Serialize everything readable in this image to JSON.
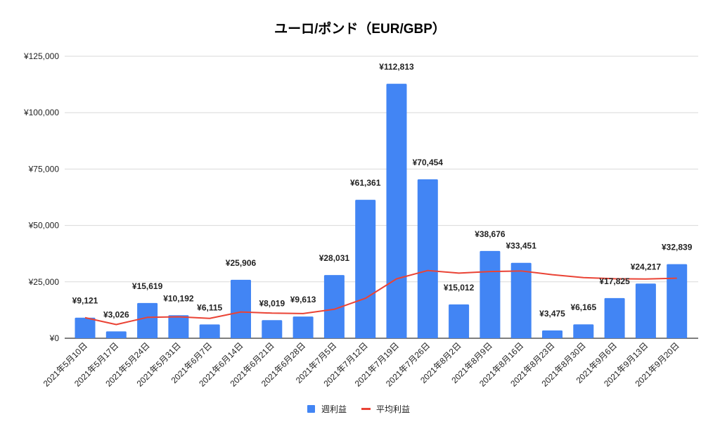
{
  "chart_data": {
    "type": "bar",
    "title": "ユーロ/ポンド（EUR/GBP）",
    "xlabel": "",
    "ylabel": "",
    "ylim": [
      0,
      125000
    ],
    "yticks": [
      0,
      25000,
      50000,
      75000,
      100000,
      125000
    ],
    "ytick_labels": [
      "¥0",
      "¥25,000",
      "¥50,000",
      "¥75,000",
      "¥100,000",
      "¥125,000"
    ],
    "grid": true,
    "legend_position": "bottom",
    "categories": [
      "2021年5月10日",
      "2021年5月17日",
      "2021年5月24日",
      "2021年5月31日",
      "2021年6月7日",
      "2021年6月14日",
      "2021年6月21日",
      "2021年6月28日",
      "2021年7月5日",
      "2021年7月12日",
      "2021年7月19日",
      "2021年7月26日",
      "2021年8月2日",
      "2021年8月9日",
      "2021年8月16日",
      "2021年8月23日",
      "2021年8月30日",
      "2021年9月6日",
      "2021年9月13日",
      "2021年9月20日"
    ],
    "series": [
      {
        "name": "週利益",
        "type": "bar",
        "color": "#4285f4",
        "values": [
          9121,
          3026,
          15619,
          10192,
          6115,
          25906,
          8019,
          9613,
          28031,
          61361,
          112813,
          70454,
          15012,
          38676,
          33451,
          3475,
          6165,
          17825,
          24217,
          32839
        ],
        "data_labels": [
          "¥9,121",
          "¥3,026",
          "¥15,619",
          "¥10,192",
          "¥6,115",
          "¥25,906",
          "¥8,019",
          "¥9,613",
          "¥28,031",
          "¥61,361",
          "¥112,813",
          "¥70,454",
          "¥15,012",
          "¥38,676",
          "¥33,451",
          "¥3,475",
          "¥6,165",
          "¥17,825",
          "¥24,217",
          "¥32,839"
        ]
      },
      {
        "name": "平均利益",
        "type": "line",
        "color": "#ea4335",
        "values": [
          9121,
          6074,
          9255,
          9490,
          8815,
          11663,
          11143,
          10951,
          12849,
          17700,
          26347,
          30023,
          28868,
          29568,
          29827,
          28180,
          26885,
          26382,
          26268,
          26597
        ]
      }
    ]
  }
}
